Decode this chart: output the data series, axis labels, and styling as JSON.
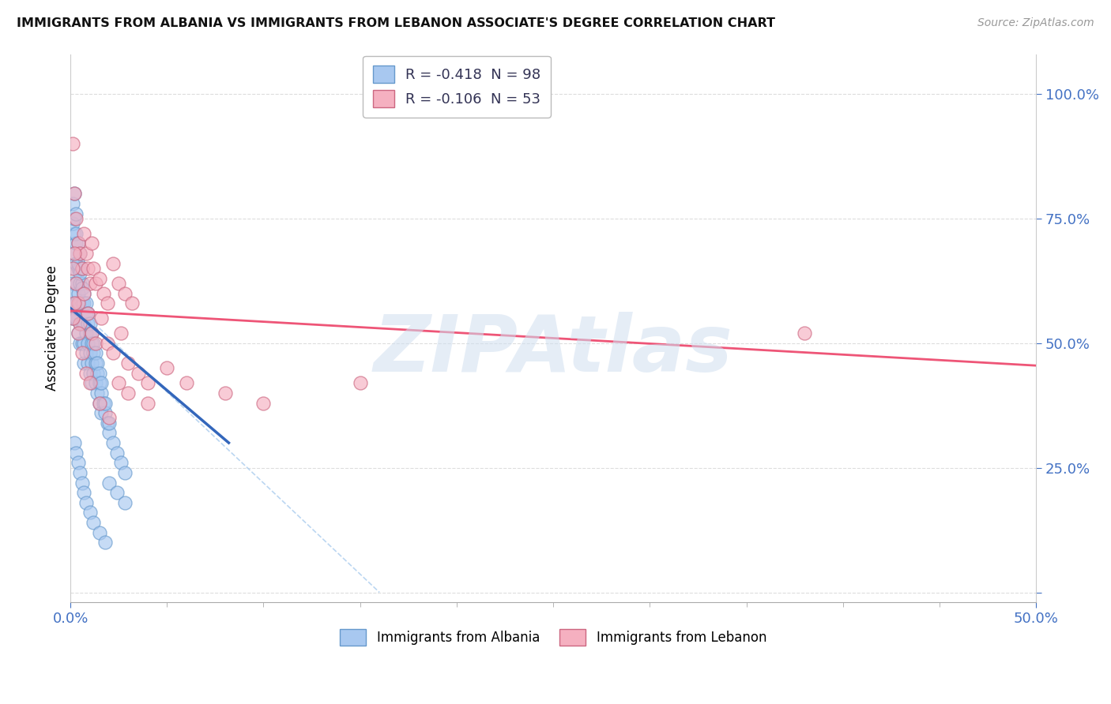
{
  "title": "IMMIGRANTS FROM ALBANIA VS IMMIGRANTS FROM LEBANON ASSOCIATE'S DEGREE CORRELATION CHART",
  "source": "Source: ZipAtlas.com",
  "xlim": [
    0.0,
    0.5
  ],
  "ylim": [
    -0.02,
    1.08
  ],
  "x_tick_positions": [
    0.0,
    0.5
  ],
  "x_tick_labels": [
    "0.0%",
    "50.0%"
  ],
  "y_tick_positions": [
    0.0,
    0.25,
    0.5,
    0.75,
    1.0
  ],
  "y_tick_labels": [
    "",
    "25.0%",
    "50.0%",
    "75.0%",
    "100.0%"
  ],
  "albania_R": -0.418,
  "albania_N": 98,
  "lebanon_R": -0.106,
  "lebanon_N": 53,
  "albania_color": "#A8C8F0",
  "albania_edge_color": "#6699CC",
  "lebanon_color": "#F5B0C0",
  "lebanon_edge_color": "#CC6680",
  "albania_line_color": "#3366BB",
  "lebanon_line_color": "#EE5577",
  "ref_line_color": "#AACCEE",
  "watermark": "ZIPAtlas",
  "watermark_color": "#D0DFF0",
  "legend_label_albania": "Immigrants from Albania",
  "legend_label_lebanon": "Immigrants from Lebanon",
  "albania_x": [
    0.001,
    0.001,
    0.001,
    0.002,
    0.002,
    0.002,
    0.002,
    0.002,
    0.003,
    0.003,
    0.003,
    0.003,
    0.003,
    0.004,
    0.004,
    0.004,
    0.004,
    0.005,
    0.005,
    0.005,
    0.005,
    0.005,
    0.006,
    0.006,
    0.006,
    0.006,
    0.007,
    0.007,
    0.007,
    0.007,
    0.008,
    0.008,
    0.008,
    0.009,
    0.009,
    0.009,
    0.01,
    0.01,
    0.01,
    0.011,
    0.011,
    0.011,
    0.012,
    0.012,
    0.013,
    0.013,
    0.014,
    0.014,
    0.015,
    0.015,
    0.016,
    0.016,
    0.017,
    0.018,
    0.019,
    0.02,
    0.022,
    0.024,
    0.026,
    0.028,
    0.001,
    0.001,
    0.002,
    0.002,
    0.003,
    0.003,
    0.004,
    0.004,
    0.005,
    0.005,
    0.006,
    0.006,
    0.007,
    0.008,
    0.009,
    0.01,
    0.011,
    0.012,
    0.013,
    0.014,
    0.015,
    0.016,
    0.018,
    0.02,
    0.002,
    0.003,
    0.004,
    0.005,
    0.006,
    0.007,
    0.008,
    0.01,
    0.012,
    0.015,
    0.018,
    0.02,
    0.024,
    0.028
  ],
  "albania_y": [
    0.62,
    0.58,
    0.55,
    0.72,
    0.68,
    0.65,
    0.6,
    0.55,
    0.7,
    0.66,
    0.62,
    0.58,
    0.55,
    0.65,
    0.6,
    0.57,
    0.52,
    0.65,
    0.62,
    0.58,
    0.54,
    0.5,
    0.62,
    0.58,
    0.54,
    0.5,
    0.58,
    0.54,
    0.5,
    0.46,
    0.56,
    0.52,
    0.48,
    0.54,
    0.5,
    0.46,
    0.52,
    0.48,
    0.44,
    0.5,
    0.46,
    0.42,
    0.48,
    0.44,
    0.46,
    0.42,
    0.44,
    0.4,
    0.42,
    0.38,
    0.4,
    0.36,
    0.38,
    0.36,
    0.34,
    0.32,
    0.3,
    0.28,
    0.26,
    0.24,
    0.78,
    0.74,
    0.8,
    0.75,
    0.76,
    0.72,
    0.7,
    0.66,
    0.68,
    0.64,
    0.65,
    0.61,
    0.6,
    0.58,
    0.56,
    0.54,
    0.52,
    0.5,
    0.48,
    0.46,
    0.44,
    0.42,
    0.38,
    0.34,
    0.3,
    0.28,
    0.26,
    0.24,
    0.22,
    0.2,
    0.18,
    0.16,
    0.14,
    0.12,
    0.1,
    0.22,
    0.2,
    0.18
  ],
  "lebanon_x": [
    0.001,
    0.002,
    0.003,
    0.004,
    0.005,
    0.006,
    0.007,
    0.008,
    0.009,
    0.01,
    0.011,
    0.012,
    0.013,
    0.015,
    0.017,
    0.019,
    0.022,
    0.025,
    0.028,
    0.032,
    0.001,
    0.002,
    0.003,
    0.004,
    0.005,
    0.007,
    0.009,
    0.011,
    0.013,
    0.016,
    0.019,
    0.022,
    0.026,
    0.03,
    0.035,
    0.04,
    0.001,
    0.002,
    0.004,
    0.006,
    0.008,
    0.01,
    0.015,
    0.02,
    0.025,
    0.03,
    0.04,
    0.05,
    0.06,
    0.08,
    0.1,
    0.15,
    0.38
  ],
  "lebanon_y": [
    0.9,
    0.8,
    0.75,
    0.7,
    0.68,
    0.65,
    0.72,
    0.68,
    0.65,
    0.62,
    0.7,
    0.65,
    0.62,
    0.63,
    0.6,
    0.58,
    0.66,
    0.62,
    0.6,
    0.58,
    0.65,
    0.68,
    0.62,
    0.58,
    0.54,
    0.6,
    0.56,
    0.52,
    0.5,
    0.55,
    0.5,
    0.48,
    0.52,
    0.46,
    0.44,
    0.42,
    0.55,
    0.58,
    0.52,
    0.48,
    0.44,
    0.42,
    0.38,
    0.35,
    0.42,
    0.4,
    0.38,
    0.45,
    0.42,
    0.4,
    0.38,
    0.42,
    0.52
  ],
  "albania_line_x0": 0.0,
  "albania_line_x1": 0.082,
  "albania_line_y0": 0.57,
  "albania_line_y1": 0.3,
  "lebanon_line_x0": 0.0,
  "lebanon_line_x1": 0.5,
  "lebanon_line_y0": 0.565,
  "lebanon_line_y1": 0.455,
  "ref_line_x0": 0.015,
  "ref_line_x1": 0.16,
  "ref_line_y0": 0.53,
  "ref_line_y1": 0.0
}
